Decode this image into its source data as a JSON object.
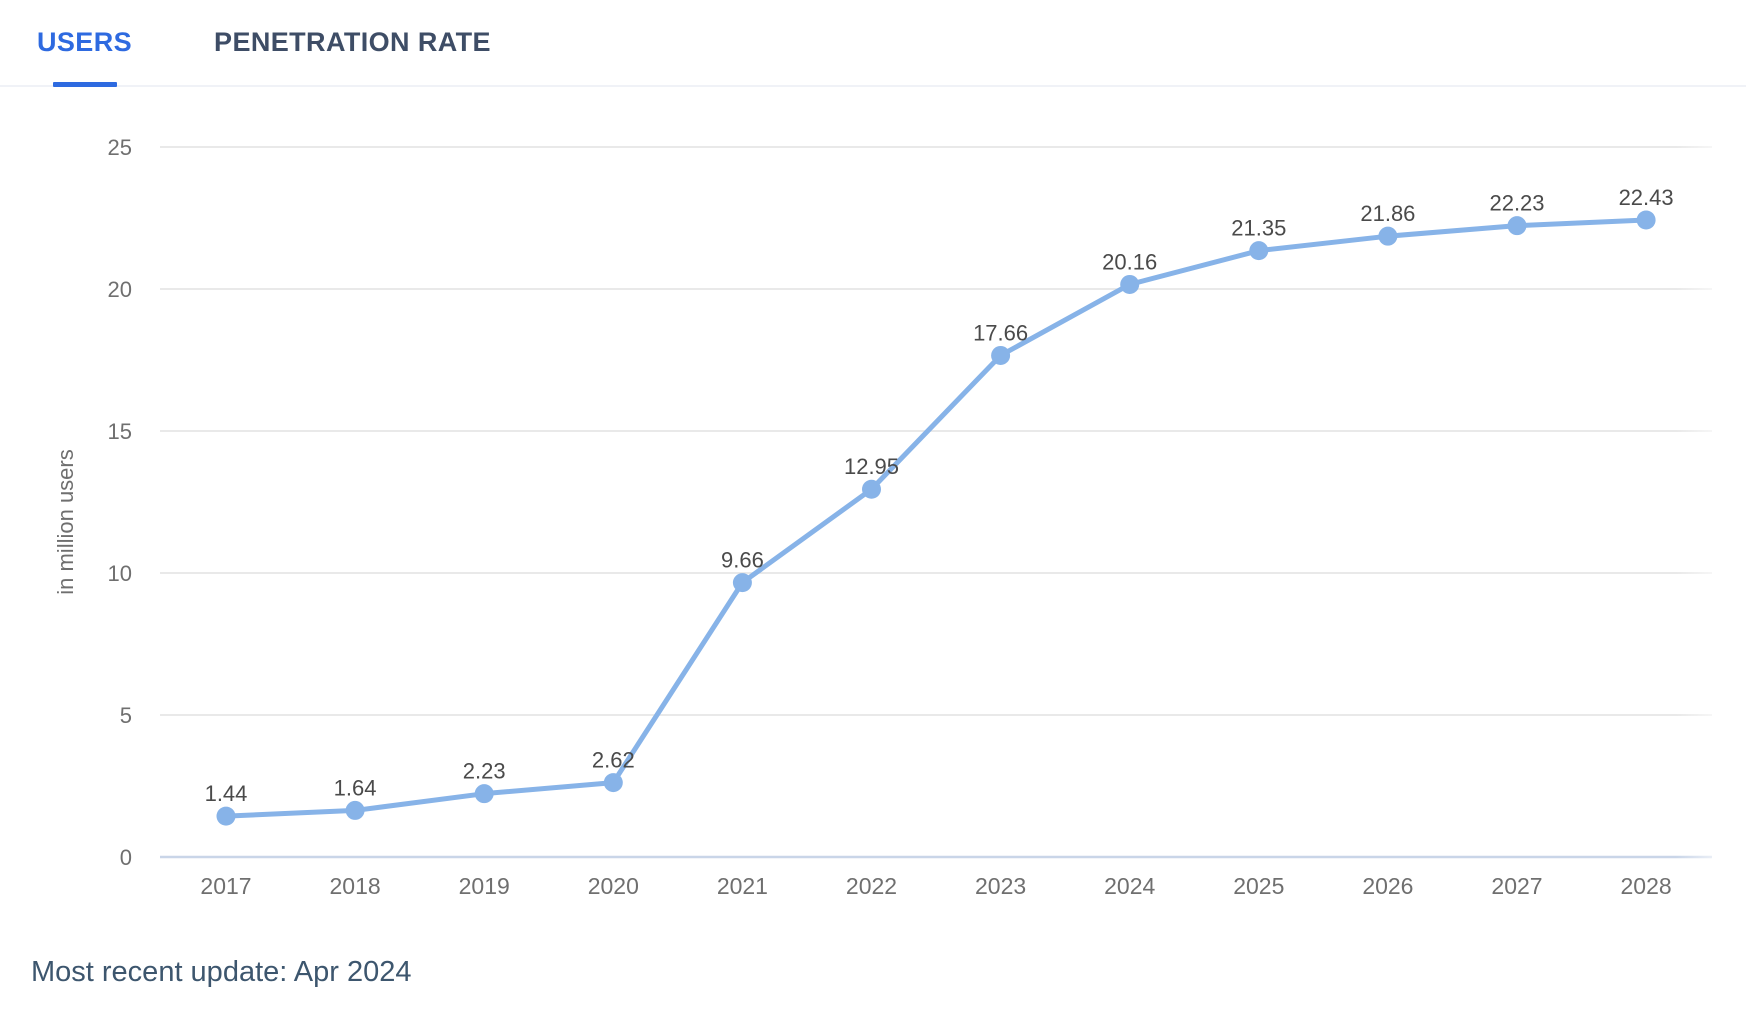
{
  "tabs": [
    {
      "label": "USERS",
      "active": true
    },
    {
      "label": "PENETRATION RATE",
      "active": false
    }
  ],
  "footer": {
    "text": "Most recent update: Apr 2024"
  },
  "chart_data": {
    "type": "line",
    "title": "",
    "categories": [
      "2017",
      "2018",
      "2019",
      "2020",
      "2021",
      "2022",
      "2023",
      "2024",
      "2025",
      "2026",
      "2027",
      "2028"
    ],
    "series": [
      {
        "name": "Users",
        "values": [
          1.44,
          1.64,
          2.23,
          2.62,
          9.66,
          12.95,
          17.66,
          20.16,
          21.35,
          21.86,
          22.23,
          22.43
        ]
      }
    ],
    "point_labels": [
      "1.44",
      "1.64",
      "2.23",
      "2.62",
      "9.66",
      "12.95",
      "17.66",
      "20.16",
      "21.35",
      "21.86",
      "22.23",
      "22.43"
    ],
    "xlabel": "",
    "ylabel": "in million users",
    "ylim": [
      0,
      25
    ],
    "yticks": [
      0,
      5,
      10,
      15,
      20,
      25
    ],
    "grid": true,
    "legend_position": "none",
    "colors": {
      "line": "#87b3e8",
      "marker": "#87b3e8",
      "accent_tab": "#2e6ae0",
      "inactive_tab": "#3e4d66",
      "grid_line": "#e2e2e2",
      "zero_axis_line": "#c9d5e8",
      "tick_text": "#6f6f6f",
      "value_label_text": "#4a4a4a",
      "footer_text": "#3d566e"
    }
  }
}
